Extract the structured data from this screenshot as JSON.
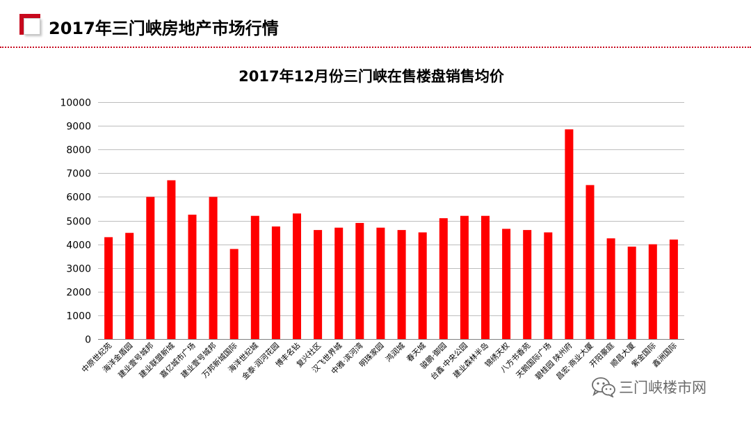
{
  "header": {
    "title": "2017年三门峡房地产市场行情",
    "accent_color": "#c7081d"
  },
  "watermark": {
    "text": "三门峡楼市网",
    "icon": "wechat-icon"
  },
  "chart_data": {
    "type": "bar",
    "title": "2017年12月份三门峡在售楼盘销售均价",
    "xlabel": "",
    "ylabel": "",
    "ylim": [
      0,
      10000
    ],
    "yticks": [
      0,
      1000,
      2000,
      3000,
      4000,
      5000,
      6000,
      7000,
      8000,
      9000,
      10000
    ],
    "grid": true,
    "legend": "none",
    "bar_color": "#ff0000",
    "categories": [
      "中原世纪苑",
      "海洋金盾园",
      "建业壹号城邦",
      "建业联盟新城",
      "嘉亿城市广场",
      "建业壹号城邦",
      "万邦新城国际",
      "海洋世纪城",
      "金泰·润河花园",
      "博丰名钻",
      "复兴社区",
      "汉飞世界城",
      "中雅·滨河湾",
      "明珠家园",
      "鸿润城",
      "春天城",
      "骏鹏·御园",
      "台鑫·中央公园",
      "建业森林半岛",
      "锦绣天权",
      "八方书香苑",
      "天鹅国际广场",
      "碧桂园 陕州府",
      "昌宏·商业大厦",
      "开阳豪庭",
      "顺昌大厦",
      "紫金国际",
      "鑫洲国际"
    ],
    "values": [
      4300,
      4480,
      6000,
      6700,
      5250,
      6000,
      3800,
      5200,
      4750,
      5300,
      4600,
      4700,
      4900,
      4700,
      4600,
      4500,
      5100,
      5200,
      5200,
      4650,
      4600,
      4500,
      8850,
      6500,
      4250,
      3900,
      4000,
      4200
    ]
  }
}
